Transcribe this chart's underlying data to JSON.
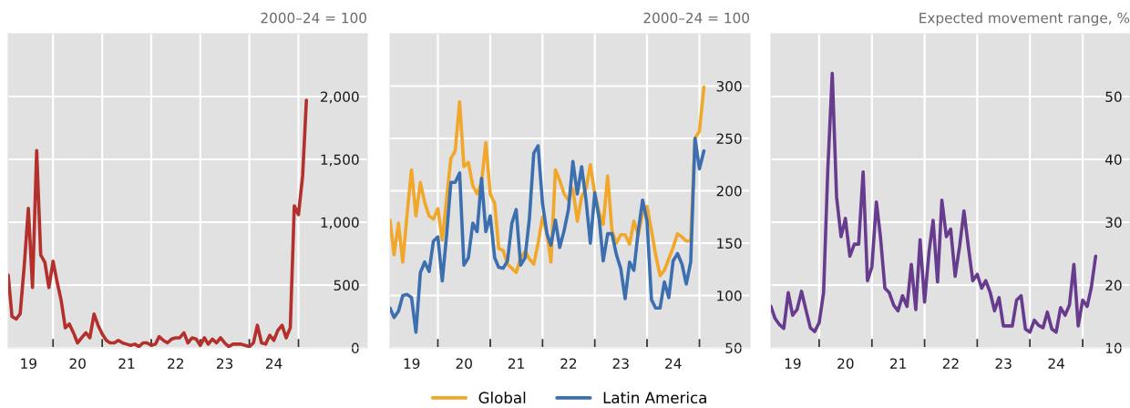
{
  "chart_data": [
    {
      "type": "line",
      "ylabel": "2000–24 = 100",
      "grid": true,
      "x": [
        "2019-02",
        "2019-03",
        "2019-04",
        "2019-05",
        "2019-06",
        "2019-07",
        "2019-08",
        "2019-09",
        "2019-10",
        "2019-11",
        "2019-12",
        "2020-01",
        "2020-02",
        "2020-03",
        "2020-04",
        "2020-05",
        "2020-06",
        "2020-07",
        "2020-08",
        "2020-09",
        "2020-10",
        "2020-11",
        "2020-12",
        "2021-01",
        "2021-02",
        "2021-03",
        "2021-04",
        "2021-05",
        "2021-06",
        "2021-07",
        "2021-08",
        "2021-09",
        "2021-10",
        "2021-11",
        "2021-12",
        "2022-01",
        "2022-02",
        "2022-03",
        "2022-04",
        "2022-05",
        "2022-06",
        "2022-07",
        "2022-08",
        "2022-09",
        "2022-10",
        "2022-11",
        "2022-12",
        "2023-01",
        "2023-02",
        "2023-03",
        "2023-04",
        "2023-05",
        "2023-06",
        "2023-07",
        "2023-08",
        "2023-09",
        "2023-10",
        "2023-11",
        "2023-12",
        "2024-01",
        "2024-02",
        "2024-03",
        "2024-04",
        "2024-05",
        "2024-06",
        "2024-07",
        "2024-08",
        "2024-09",
        "2024-10",
        "2024-11",
        "2024-12",
        "2025-01",
        "2025-02",
        "2025-03"
      ],
      "series": [
        {
          "color": "#b3302d",
          "values": [
            580,
            250,
            230,
            270,
            660,
            1110,
            480,
            1570,
            740,
            680,
            480,
            690,
            520,
            380,
            160,
            190,
            120,
            40,
            80,
            120,
            80,
            270,
            180,
            110,
            60,
            40,
            40,
            60,
            40,
            30,
            20,
            30,
            10,
            40,
            40,
            20,
            30,
            90,
            60,
            40,
            70,
            80,
            80,
            120,
            40,
            80,
            70,
            20,
            80,
            30,
            70,
            40,
            80,
            40,
            10,
            30,
            30,
            30,
            20,
            10,
            40,
            180,
            40,
            30,
            100,
            60,
            140,
            180,
            80,
            160,
            1130,
            1060,
            1370,
            1970
          ]
        }
      ],
      "xlim": [
        "2019-02-01",
        "2026-05-28"
      ],
      "ylim": [
        0,
        2500
      ],
      "yticks": [
        0,
        500,
        {
          "value": 1000,
          "label": "1,000"
        },
        {
          "value": 1500,
          "label": "1,500"
        },
        {
          "value": 2000,
          "label": "2,000"
        }
      ],
      "xticks": [
        {
          "value": "2019-07-02",
          "label": "19"
        },
        {
          "value": "2020-07-02",
          "label": "20"
        },
        {
          "value": "2021-07-02",
          "label": "21"
        },
        {
          "value": "2022-07-02",
          "label": "22"
        },
        {
          "value": "2023-07-02",
          "label": "23"
        },
        {
          "value": "2024-07-02",
          "label": "24"
        },
        {
          "value": "2020-01-01",
          "label": null
        },
        {
          "value": "2021-01-01",
          "label": null
        },
        {
          "value": "2022-01-01",
          "label": null
        },
        {
          "value": "2023-01-01",
          "label": null
        },
        {
          "value": "2024-01-01",
          "label": null
        },
        {
          "value": "2025-01-01",
          "label": null
        }
      ]
    },
    {
      "type": "line",
      "ylabel": "2000–24 = 100",
      "grid": true,
      "legend": "bottom",
      "x": [
        "2019-02",
        "2019-03",
        "2019-04",
        "2019-05",
        "2019-06",
        "2019-07",
        "2019-08",
        "2019-09",
        "2019-10",
        "2019-11",
        "2019-12",
        "2020-01",
        "2020-02",
        "2020-03",
        "2020-04",
        "2020-05",
        "2020-06",
        "2020-07",
        "2020-08",
        "2020-09",
        "2020-10",
        "2020-11",
        "2020-12",
        "2021-01",
        "2021-02",
        "2021-03",
        "2021-04",
        "2021-05",
        "2021-06",
        "2021-07",
        "2021-08",
        "2021-09",
        "2021-10",
        "2021-11",
        "2021-12",
        "2022-01",
        "2022-02",
        "2022-03",
        "2022-04",
        "2022-05",
        "2022-06",
        "2022-07",
        "2022-08",
        "2022-09",
        "2022-10",
        "2022-11",
        "2022-12",
        "2023-01",
        "2023-02",
        "2023-03",
        "2023-04",
        "2023-05",
        "2023-06",
        "2023-07",
        "2023-08",
        "2023-09",
        "2023-10",
        "2023-11",
        "2023-12",
        "2024-01",
        "2024-02",
        "2024-03",
        "2024-04",
        "2024-05",
        "2024-06",
        "2024-07",
        "2024-08",
        "2024-09",
        "2024-10",
        "2024-11",
        "2024-12",
        "2025-01",
        "2025-02"
      ],
      "series": [
        {
          "name": "Global",
          "color": "#f0a72a",
          "values": [
            172,
            139,
            169,
            132,
            179,
            220,
            176,
            208,
            189,
            176,
            173,
            183,
            153,
            191,
            231,
            238,
            285,
            223,
            227,
            205,
            197,
            208,
            246,
            197,
            188,
            145,
            143,
            130,
            126,
            122,
            136,
            142,
            135,
            130,
            150,
            175,
            159,
            132,
            220,
            210,
            197,
            191,
            202,
            171,
            194,
            202,
            225,
            197,
            179,
            168,
            214,
            162,
            150,
            158,
            158,
            149,
            171,
            158,
            179,
            185,
            162,
            139,
            119,
            124,
            135,
            146,
            159,
            156,
            152,
            152,
            250,
            257,
            299
          ]
        },
        {
          "name": "Latin America",
          "color": "#3b6fb0",
          "values": [
            88,
            79,
            85,
            100,
            101,
            98,
            65,
            122,
            132,
            123,
            152,
            156,
            114,
            156,
            208,
            208,
            217,
            129,
            136,
            169,
            161,
            212,
            161,
            176,
            136,
            127,
            126,
            133,
            169,
            182,
            129,
            136,
            173,
            236,
            243,
            188,
            159,
            148,
            172,
            146,
            162,
            182,
            228,
            197,
            223,
            191,
            150,
            198,
            173,
            133,
            159,
            159,
            139,
            126,
            97,
            132,
            124,
            162,
            191,
            171,
            96,
            88,
            88,
            113,
            98,
            133,
            140,
            130,
            111,
            132,
            250,
            221,
            238
          ]
        }
      ],
      "xlim": [
        "2019-02-01",
        "2025-12-20"
      ],
      "ylim": [
        50,
        350
      ],
      "yticks": [
        50,
        100,
        150,
        200,
        250,
        300
      ],
      "xticks": [
        {
          "value": "2019-07-02",
          "label": "19"
        },
        {
          "value": "2020-07-02",
          "label": "20"
        },
        {
          "value": "2021-07-02",
          "label": "21"
        },
        {
          "value": "2022-07-02",
          "label": "22"
        },
        {
          "value": "2023-07-02",
          "label": "23"
        },
        {
          "value": "2024-07-02",
          "label": "24"
        },
        {
          "value": "2020-01-01",
          "label": null
        },
        {
          "value": "2021-01-01",
          "label": null
        },
        {
          "value": "2022-01-01",
          "label": null
        },
        {
          "value": "2023-01-01",
          "label": null
        },
        {
          "value": "2024-01-01",
          "label": null
        },
        {
          "value": "2025-01-01",
          "label": null
        }
      ]
    },
    {
      "type": "line",
      "ylabel": "Expected movement range, %",
      "grid": true,
      "x": [
        "2019-02",
        "2019-03",
        "2019-04",
        "2019-05",
        "2019-06",
        "2019-07",
        "2019-08",
        "2019-09",
        "2019-10",
        "2019-11",
        "2019-12",
        "2020-01",
        "2020-02",
        "2020-03",
        "2020-04",
        "2020-05",
        "2020-06",
        "2020-07",
        "2020-08",
        "2020-09",
        "2020-10",
        "2020-11",
        "2020-12",
        "2021-01",
        "2021-02",
        "2021-03",
        "2021-04",
        "2021-05",
        "2021-06",
        "2021-07",
        "2021-08",
        "2021-09",
        "2021-10",
        "2021-11",
        "2021-12",
        "2022-01",
        "2022-02",
        "2022-03",
        "2022-04",
        "2022-05",
        "2022-06",
        "2022-07",
        "2022-08",
        "2022-09",
        "2022-10",
        "2022-11",
        "2022-12",
        "2023-01",
        "2023-02",
        "2023-03",
        "2023-04",
        "2023-05",
        "2023-06",
        "2023-07",
        "2023-08",
        "2023-09",
        "2023-10",
        "2023-11",
        "2023-12",
        "2024-01",
        "2024-02",
        "2024-03",
        "2024-04",
        "2024-05",
        "2024-06",
        "2024-07",
        "2024-08",
        "2024-09",
        "2024-10",
        "2024-11",
        "2024-12",
        "2025-01",
        "2025-02",
        "2025-03",
        "2025-04"
      ],
      "series": [
        {
          "color": "#673c8e",
          "values": [
            16.6,
            14.7,
            13.7,
            13.1,
            18.8,
            15.2,
            16.1,
            19.0,
            16.1,
            13.2,
            12.6,
            14.0,
            18.8,
            38.3,
            53.7,
            34.0,
            27.7,
            30.6,
            24.6,
            26.5,
            26.5,
            38.0,
            20.7,
            22.9,
            33.2,
            27.7,
            19.5,
            18.8,
            16.8,
            15.9,
            18.3,
            16.6,
            23.3,
            16.1,
            27.2,
            17.3,
            25.3,
            30.3,
            20.5,
            33.5,
            27.7,
            28.9,
            21.4,
            26.2,
            31.8,
            26.0,
            20.7,
            21.7,
            19.5,
            20.7,
            18.8,
            15.9,
            18.0,
            13.5,
            13.5,
            13.5,
            17.6,
            18.3,
            13.0,
            12.5,
            14.4,
            13.6,
            13.2,
            15.7,
            13.0,
            12.5,
            16.4,
            15.2,
            16.8,
            23.3,
            13.5,
            17.6,
            16.6,
            19.5,
            24.6
          ]
        }
      ],
      "xlim": [
        "2019-02-01",
        "2025-11-25"
      ],
      "ylim": [
        10,
        60
      ],
      "yticks": [
        10,
        20,
        30,
        40,
        50
      ],
      "xticks": [
        {
          "value": "2019-07-02",
          "label": "19"
        },
        {
          "value": "2020-07-02",
          "label": "20"
        },
        {
          "value": "2021-07-02",
          "label": "21"
        },
        {
          "value": "2022-07-02",
          "label": "22"
        },
        {
          "value": "2023-07-02",
          "label": "23"
        },
        {
          "value": "2024-07-02",
          "label": "24"
        },
        {
          "value": "2020-01-01",
          "label": null
        },
        {
          "value": "2021-01-01",
          "label": null
        },
        {
          "value": "2022-01-01",
          "label": null
        },
        {
          "value": "2023-01-01",
          "label": null
        },
        {
          "value": "2024-01-01",
          "label": null
        },
        {
          "value": "2025-01-01",
          "label": null
        }
      ]
    }
  ]
}
